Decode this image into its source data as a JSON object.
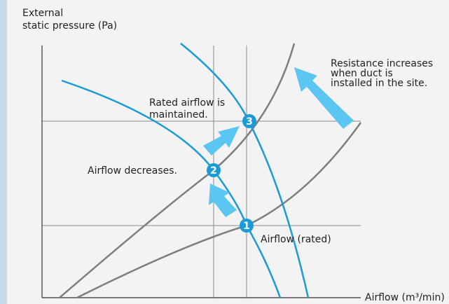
{
  "y_axis_label": [
    "External",
    "static pressure (Pa)"
  ],
  "x_axis_label": "Airflow (m³/min)",
  "annotations": {
    "resistance": [
      "Resistance increases",
      "when duct is",
      "installed in the site."
    ],
    "rated_maintained": [
      "Rated airflow is",
      "maintained."
    ],
    "decreases": "Airflow decreases.",
    "rated": "Airflow (rated)"
  },
  "points": [
    "1",
    "2",
    "3"
  ]
}
